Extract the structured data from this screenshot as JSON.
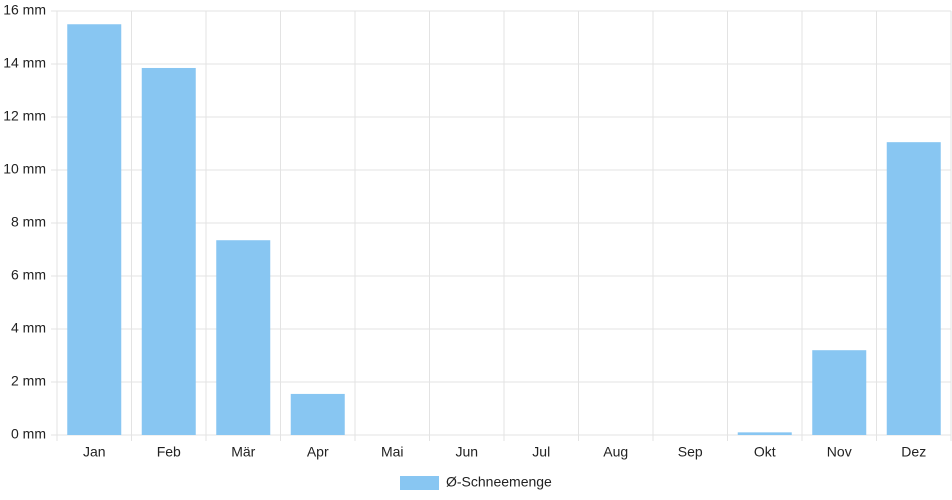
{
  "chart_data": {
    "type": "bar",
    "categories": [
      "Jan",
      "Feb",
      "Mär",
      "Apr",
      "Mai",
      "Jun",
      "Jul",
      "Aug",
      "Sep",
      "Okt",
      "Nov",
      "Dez"
    ],
    "series": [
      {
        "name": "Ø-Schneemenge",
        "color": "#88c6f2",
        "values": [
          15.5,
          13.85,
          7.35,
          1.55,
          0,
          0,
          0,
          0,
          0,
          0.1,
          3.2,
          11.05
        ]
      }
    ],
    "ylim": [
      0,
      16
    ],
    "yticks": [
      {
        "value": 0,
        "label": "0 mm"
      },
      {
        "value": 2,
        "label": "2 mm"
      },
      {
        "value": 4,
        "label": "4 mm"
      },
      {
        "value": 6,
        "label": "6 mm"
      },
      {
        "value": 8,
        "label": "8 mm"
      },
      {
        "value": 10,
        "label": "10 mm"
      },
      {
        "value": 12,
        "label": "12 mm"
      },
      {
        "value": 14,
        "label": "14 mm"
      },
      {
        "value": 16,
        "label": "16 mm"
      }
    ],
    "grid": true,
    "legend": "bottom"
  }
}
